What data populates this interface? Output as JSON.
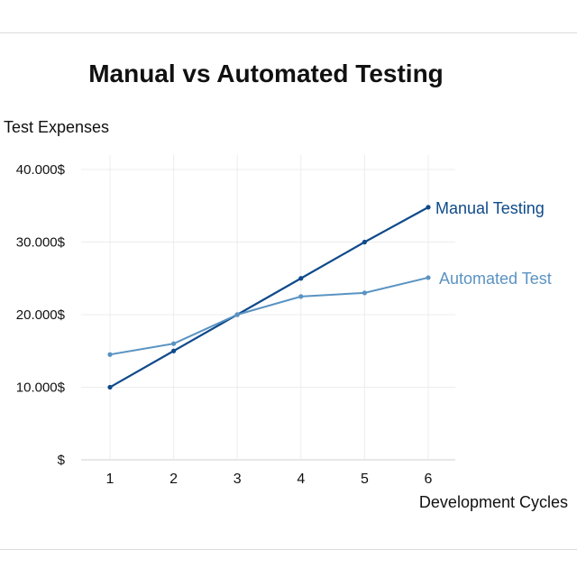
{
  "chart_data": {
    "type": "line",
    "title": "Manual vs Automated Testing",
    "ylabel": "Test Expenses",
    "xlabel": "Development Cycles",
    "x": [
      1,
      2,
      3,
      4,
      5,
      6
    ],
    "xticks": [
      "1",
      "2",
      "3",
      "4",
      "5",
      "6"
    ],
    "yticks": [
      {
        "value": 0,
        "label": "$"
      },
      {
        "value": 10000,
        "label": "10.000$"
      },
      {
        "value": 20000,
        "label": "20.000$"
      },
      {
        "value": 30000,
        "label": "30.000$"
      },
      {
        "value": 40000,
        "label": "40.000$"
      }
    ],
    "ylim": [
      0,
      40000
    ],
    "grid": true,
    "legend": "inline labels at line ends",
    "series": [
      {
        "name": "Manual Testing",
        "color": "#0f4a8a",
        "values": [
          10000,
          15000,
          20000,
          25000,
          30000,
          34800
        ]
      },
      {
        "name": "Automated Test",
        "color": "#5a93c2",
        "values": [
          14500,
          16000,
          20000,
          22500,
          23000,
          25100
        ]
      }
    ]
  }
}
